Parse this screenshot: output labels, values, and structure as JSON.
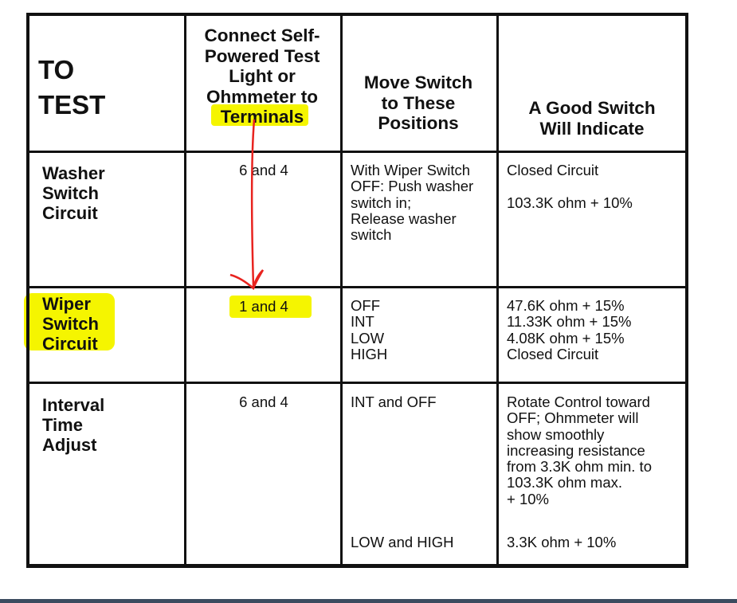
{
  "header": {
    "col1": "TO\nTEST",
    "col2": "Connect Self-\nPowered Test\nLight or\nOhmmeter to\nTerminals",
    "col3": "Move Switch\nto These\nPositions",
    "col4": "A Good Switch\nWill Indicate"
  },
  "rows": [
    {
      "test": "Washer\nSwitch\nCircuit",
      "terminals": "6 and 4",
      "positions": "With Wiper Switch\nOFF: Push washer\nswitch in;\nRelease washer\nswitch",
      "indicate": "Closed Circuit\n\n103.3K ohm + 10%"
    },
    {
      "test": "Wiper\nSwitch\nCircuit",
      "terminals": "1 and 4",
      "positions": "OFF\nINT\nLOW\nHIGH",
      "indicate": "47.6K ohm + 15%\n11.33K ohm + 15%\n4.08K ohm + 15%\nClosed Circuit"
    },
    {
      "test": "Interval\nTime\nAdjust",
      "terminals": "6 and 4",
      "positions": "INT and OFF",
      "indicate": "Rotate Control toward\nOFF; Ohmmeter will\nshow smoothly\nincreasing resistance\nfrom 3.3K ohm min. to\n103.3K ohm max.\n+ 10%",
      "positions2": "LOW and HIGH",
      "indicate2": "3.3K ohm + 10%"
    }
  ],
  "annotations": {
    "highlight_color": "#f5f500",
    "arrow_color": "#e8231f",
    "arrow": "arrow-from-terminals-to-1-and-4"
  }
}
